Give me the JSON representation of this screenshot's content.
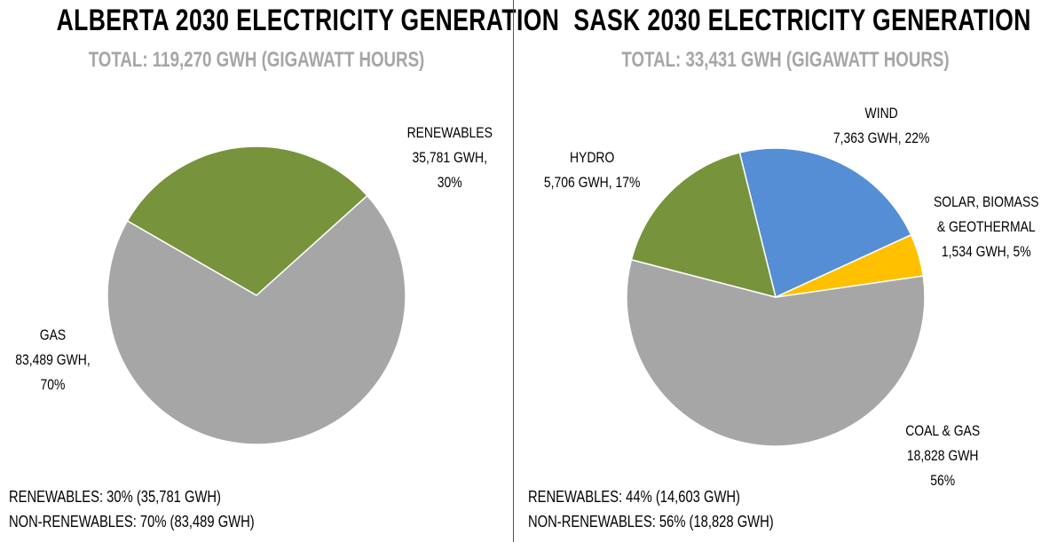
{
  "chart_data": [
    {
      "type": "pie",
      "title": "ALBERTA 2030 ELECTRICITY GENERATION",
      "subtitle": "TOTAL: 119,270 GWH (GIGAWATT HOURS)",
      "unit": "GWh",
      "slices": [
        {
          "name": "RENEWABLES",
          "value": 35781,
          "percent": 30,
          "color": "#77933c",
          "label_lines": [
            "RENEWABLES",
            "35,781 GWH,",
            "30%"
          ]
        },
        {
          "name": "GAS",
          "value": 83489,
          "percent": 70,
          "color": "#a6a6a6",
          "label_lines": [
            "GAS",
            "83,489 GWH,",
            "70%"
          ]
        }
      ],
      "summary": [
        "RENEWABLES:  30% (35,781 GWH)",
        "NON-RENEWABLES:  70% (83,489 GWH)"
      ]
    },
    {
      "type": "pie",
      "title": "SASK 2030 ELECTRICITY GENERATION",
      "subtitle": "TOTAL: 33,431 GWH (GIGAWATT HOURS)",
      "unit": "GWh",
      "slices": [
        {
          "name": "WIND",
          "value": 7363,
          "percent": 22,
          "color": "#558ed5",
          "label_lines": [
            "WIND",
            "7,363 GWH, 22%"
          ]
        },
        {
          "name": "SOLAR, BIOMASS & GEOTHERMAL",
          "value": 1534,
          "percent": 5,
          "color": "#ffc000",
          "label_lines": [
            "SOLAR, BIOMASS",
            "& GEOTHERMAL",
            "1,534 GWH, 5%"
          ]
        },
        {
          "name": "COAL & GAS",
          "value": 18828,
          "percent": 56,
          "color": "#a6a6a6",
          "label_lines": [
            "COAL & GAS",
            "18,828 GWH",
            "56%"
          ]
        },
        {
          "name": "HYDRO",
          "value": 5706,
          "percent": 17,
          "color": "#77933c",
          "label_lines": [
            "HYDRO",
            "5,706 GWH, 17%"
          ]
        }
      ],
      "summary": [
        "RENEWABLES:  44% (14,603 GWH)",
        "NON-RENEWABLES:  56% (18,828 GWH)"
      ]
    }
  ]
}
